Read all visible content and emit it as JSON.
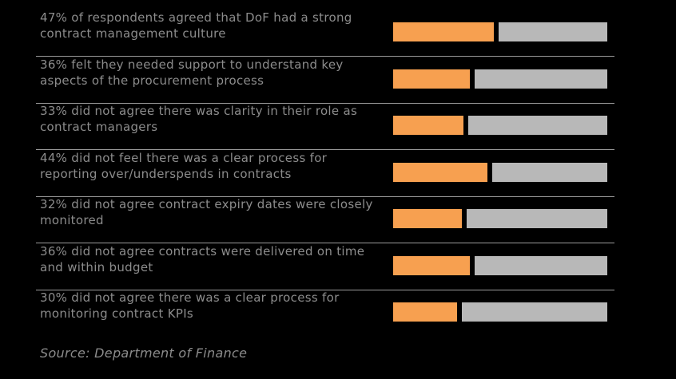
{
  "chart_data": {
    "type": "bar",
    "orientation": "horizontal-stacked",
    "rows": [
      {
        "label": "47% of respondents agreed that DoF had a strong contract management culture",
        "value": 47
      },
      {
        "label": "36% felt they needed support to understand key aspects of the procurement process",
        "value": 36
      },
      {
        "label": "33% did not agree there was clarity in their role as contract managers",
        "value": 33
      },
      {
        "label": "44% did not feel there was a clear process for reporting over/underspends in contracts",
        "value": 44
      },
      {
        "label": "32% did not agree contract expiry dates were closely monitored",
        "value": 32
      },
      {
        "label": "36% did not agree contracts were delivered on time and within budget",
        "value": 36
      },
      {
        "label": "30% did not agree there was a clear process for monitoring contract KPIs",
        "value": 30
      }
    ],
    "max": 100,
    "colors": {
      "highlight": "#f7a050",
      "remainder": "#b8b8b8",
      "background": "#000000",
      "text": "#8c8c8c"
    }
  },
  "source": "Source: Department of Finance"
}
